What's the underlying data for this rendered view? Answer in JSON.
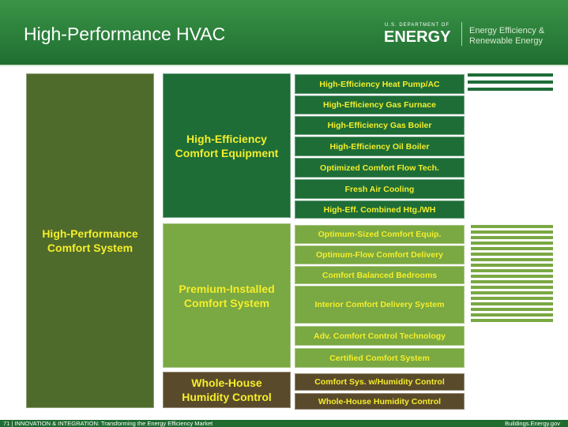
{
  "header": {
    "title": "High-Performance HVAC",
    "logo": {
      "department": "U.S. DEPARTMENT OF",
      "agency": "ENERGY",
      "office_line1": "Energy Efficiency &",
      "office_line2": "Renewable Energy"
    }
  },
  "root": {
    "label": "High-Performance Comfort System"
  },
  "groups": [
    {
      "label": "High-Efficiency Comfort Equipment",
      "items": [
        "High-Efficiency Heat Pump/AC",
        "High-Efficiency Gas  Furnace",
        "High-Efficiency Gas Boiler",
        "High-Efficiency Oil Boiler",
        "Optimized Comfort Flow Tech.",
        "Fresh Air Cooling",
        "High-Eff. Combined Htg./WH"
      ]
    },
    {
      "label": "Premium-Installed Comfort System",
      "items": [
        "Optimum-Sized Comfort Equip.",
        "Optimum-Flow Comfort Delivery",
        "Comfort Balanced Bedrooms",
        "Interior Comfort Delivery System",
        "Adv. Comfort Control Technology",
        "Certified Comfort System"
      ]
    },
    {
      "label": "Whole-House Humidity Control",
      "items": [
        "Comfort Sys. w/Humidity Control",
        "Whole-House Humidity Control"
      ]
    }
  ],
  "footer": {
    "left": "71 | INNOVATION & INTEGRATION: Transforming the Energy Efficiency Market",
    "right": "Buildings.Energy.gov"
  }
}
